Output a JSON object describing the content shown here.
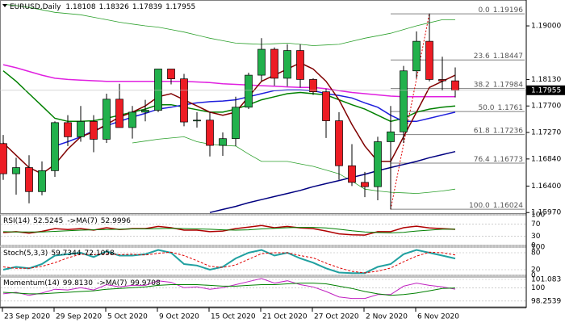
{
  "chart_data": {
    "type": "candlestick",
    "title": "EURUSD,Daily",
    "x": [
      "23 Sep 2020",
      null,
      null,
      null,
      "29 Sep 2020",
      null,
      null,
      null,
      "5 Oct 2020",
      null,
      null,
      null,
      "9 Oct 2020",
      null,
      null,
      null,
      "15 Oct 2020",
      null,
      null,
      null,
      "21 Oct 2020",
      null,
      null,
      null,
      "27 Oct 2020",
      null,
      null,
      null,
      "2 Nov 2020",
      null,
      null,
      null,
      "6 Nov 2020",
      null,
      null,
      null
    ],
    "open": [
      1.1709,
      1.166,
      1.167,
      1.1631,
      1.1665,
      1.1743,
      1.172,
      1.1745,
      1.1716,
      1.1781,
      1.1735,
      1.176,
      1.1763,
      1.183,
      1.1814,
      1.1746,
      1.1747,
      1.1706,
      1.1717,
      1.1768,
      1.182,
      1.1862,
      1.1815,
      1.186,
      1.1813,
      1.1793,
      1.1746,
      1.1673,
      1.1646,
      1.1639,
      1.1712,
      1.1728,
      1.1827,
      1.1875,
      1.1813,
      1.18108
    ],
    "high": [
      1.1723,
      1.1686,
      1.169,
      1.168,
      1.1745,
      1.1755,
      1.177,
      1.1755,
      1.179,
      1.1806,
      1.177,
      1.178,
      1.183,
      1.183,
      1.1822,
      1.176,
      1.176,
      1.1727,
      1.1785,
      1.1824,
      1.188,
      1.1865,
      1.187,
      1.187,
      1.1815,
      1.1798,
      1.176,
      1.1708,
      1.1663,
      1.172,
      1.177,
      1.1835,
      1.1891,
      1.192,
      1.185,
      1.18326
    ],
    "low": [
      1.165,
      1.1626,
      1.1612,
      1.1625,
      1.1655,
      1.1705,
      1.1712,
      1.1695,
      1.171,
      1.1735,
      1.1717,
      1.1745,
      1.176,
      1.1805,
      1.1737,
      1.1735,
      1.1688,
      1.1689,
      1.1705,
      1.1765,
      1.181,
      1.1803,
      1.1802,
      1.18,
      1.1788,
      1.1718,
      1.165,
      1.164,
      1.1622,
      1.1617,
      1.1602,
      1.171,
      1.1815,
      1.181,
      1.1795,
      1.17839
    ],
    "close": [
      1.166,
      1.167,
      1.1631,
      1.1665,
      1.1743,
      1.172,
      1.1745,
      1.1716,
      1.1781,
      1.1735,
      1.176,
      1.1763,
      1.183,
      1.1814,
      1.1744,
      1.1747,
      1.1706,
      1.1717,
      1.1768,
      1.182,
      1.1862,
      1.1815,
      1.186,
      1.1813,
      1.1793,
      1.1746,
      1.1673,
      1.1646,
      1.1639,
      1.1712,
      1.1728,
      1.1827,
      1.1875,
      1.1813,
      1.18108,
      1.17955
    ],
    "up_color": "#22b14c",
    "down_color": "#ed1c24",
    "ylim": [
      1.1596,
      1.1942
    ],
    "yticks": [
      {
        "value": 1.19,
        "label": "1.19000"
      },
      {
        "value": 1.1813,
        "label": "1.18130"
      },
      {
        "value": 1.177,
        "label": "1.17700"
      },
      {
        "value": 1.1727,
        "label": "1.17270"
      },
      {
        "value": 1.1684,
        "label": "1.16840"
      },
      {
        "value": 1.164,
        "label": "1.16400"
      },
      {
        "value": 1.1597,
        "label": "1.15970"
      }
    ],
    "series": [
      {
        "color": "#2ca02c",
        "values": [
          1.1935,
          1.1933,
          1.193,
          1.1926,
          1.1922,
          1.192,
          1.1918,
          1.1914,
          1.191,
          1.1906,
          1.1903,
          1.19,
          1.1898,
          1.1894,
          1.189,
          1.1885,
          1.188,
          1.1876,
          1.1872,
          1.1871,
          1.187,
          1.1871,
          1.1872,
          1.187,
          1.1868,
          1.1869,
          1.187,
          1.1875,
          1.188,
          1.1884,
          1.1888,
          1.1894,
          1.19,
          1.1905,
          1.191,
          1.191
        ]
      },
      {
        "color": "#2ca02c",
        "values": [
          null,
          null,
          null,
          null,
          null,
          null,
          null,
          null,
          null,
          null,
          1.171,
          1.1713,
          1.1716,
          1.1718,
          1.172,
          1.1712,
          1.1708,
          1.1706,
          1.1705,
          1.1692,
          1.168,
          1.168,
          1.168,
          1.1676,
          1.1672,
          1.1666,
          1.166,
          1.1648,
          1.1635,
          1.1632,
          1.163,
          1.1629,
          1.1628,
          1.163,
          1.1632,
          1.1635
        ]
      },
      {
        "color": "#e020e0",
        "values": [
          1.1837,
          1.1832,
          1.1826,
          1.182,
          1.1815,
          1.1813,
          1.1812,
          1.1811,
          1.181,
          1.181,
          1.181,
          1.181,
          1.181,
          1.181,
          1.181,
          1.1809,
          1.1808,
          1.1806,
          1.1805,
          1.1804,
          1.1803,
          1.1802,
          1.1801,
          1.18,
          1.18,
          1.1798,
          1.1795,
          1.1792,
          1.179,
          1.1788,
          1.1786,
          1.1785,
          1.1785,
          1.1785,
          1.1785,
          1.1785
        ]
      },
      {
        "color": "#008000",
        "values": [
          1.1827,
          1.181,
          1.179,
          1.177,
          1.175,
          1.1745,
          1.1745,
          1.1746,
          1.175,
          1.1755,
          1.176,
          1.1765,
          1.1772,
          1.1772,
          1.1768,
          1.1764,
          1.176,
          1.176,
          1.1765,
          1.1772,
          1.178,
          1.1785,
          1.179,
          1.1792,
          1.179,
          1.1788,
          1.178,
          1.1772,
          1.1765,
          1.1755,
          1.1745,
          1.175,
          1.176,
          1.1765,
          1.1768,
          1.177
        ]
      },
      {
        "color": "#1e1edc",
        "values": [
          null,
          null,
          null,
          null,
          1.1705,
          1.1712,
          1.172,
          1.173,
          1.1738,
          1.1745,
          1.1752,
          1.1758,
          1.1765,
          1.1768,
          1.1772,
          1.1775,
          1.1777,
          1.1778,
          1.178,
          1.1785,
          1.179,
          1.1795,
          1.1796,
          1.1796,
          1.1795,
          1.179,
          1.1787,
          1.1783,
          1.1775,
          1.1768,
          1.1755,
          1.1745,
          1.1745,
          1.175,
          1.1755,
          1.176
        ]
      },
      {
        "color": "#000080",
        "values": [
          null,
          null,
          null,
          null,
          null,
          null,
          null,
          null,
          null,
          null,
          null,
          null,
          null,
          null,
          null,
          null,
          1.1597,
          1.1602,
          1.1607,
          1.1613,
          1.1618,
          1.1623,
          1.1628,
          1.1633,
          1.1639,
          1.1644,
          1.1649,
          1.1654,
          1.1659,
          1.1665,
          1.167,
          1.1675,
          1.168,
          1.1686,
          1.1691,
          1.1696
        ]
      },
      {
        "color": "#800000",
        "values": [
          1.171,
          1.169,
          1.167,
          1.166,
          1.1675,
          1.17,
          1.172,
          1.1728,
          1.174,
          1.1752,
          1.176,
          1.177,
          1.1785,
          1.179,
          1.178,
          1.177,
          1.176,
          1.1755,
          1.176,
          1.1785,
          1.181,
          1.182,
          1.183,
          1.184,
          1.183,
          1.181,
          1.178,
          1.174,
          1.1705,
          1.168,
          1.168,
          1.172,
          1.176,
          1.18,
          1.181,
          1.182
        ]
      }
    ],
    "fib_levels": [
      {
        "ratio": "0.0",
        "price": 1.19196
      },
      {
        "ratio": "23.6",
        "price": 1.18447
      },
      {
        "ratio": "38.2",
        "price": 1.17984
      },
      {
        "ratio": "50.0",
        "price": 1.1761
      },
      {
        "ratio": "61.8",
        "price": 1.17236
      },
      {
        "ratio": "76.4",
        "price": 1.16773
      },
      {
        "ratio": "100.0",
        "price": 1.16024
      }
    ],
    "fib_color": "#808080",
    "indicators": [
      {
        "ylim": [
          0,
          100
        ],
        "yticks": [
          100,
          70,
          30,
          0
        ],
        "series": [
          {
            "name": "RSI(14)",
            "color": "#b00000",
            "width": 1.5,
            "values": [
              42,
              45,
              40,
              46,
              55,
              52,
              55,
              50,
              58,
              52,
              55,
              55,
              62,
              58,
              50,
              50,
              45,
              47,
              55,
              60,
              65,
              58,
              62,
              57,
              55,
              47,
              38,
              35,
              34,
              45,
              45,
              58,
              63,
              57,
              55,
              52.5245
            ]
          },
          {
            "name": "->MA(7)",
            "color": "#008000",
            "width": 1,
            "values": [
              45,
              44,
              44,
              44,
              46,
              48,
              50,
              51,
              52,
              53,
              54,
              54,
              55,
              56,
              55,
              54,
              53,
              51,
              50,
              51,
              54,
              56,
              58,
              59,
              59,
              57,
              53,
              48,
              44,
              42,
              41,
              43,
              47,
              50,
              53,
              52.9996
            ]
          }
        ]
      },
      {
        "ylim": [
          0,
          100
        ],
        "yticks": [
          100,
          80,
          20,
          0
        ],
        "series": [
          {
            "name": "Stoch(5,3,3)",
            "color": "#20a0a0",
            "width": 2,
            "values": [
              20,
              30,
              25,
              40,
              70,
              75,
              80,
              65,
              85,
              70,
              70,
              75,
              90,
              80,
              40,
              35,
              20,
              30,
              60,
              80,
              90,
              70,
              80,
              60,
              45,
              25,
              10,
              8,
              8,
              30,
              40,
              75,
              90,
              80,
              70,
              59.7344
            ]
          },
          {
            "color": "#e00000",
            "width": 1,
            "dashed": true,
            "values": [
              30,
              25,
              25,
              32,
              45,
              62,
              75,
              73,
              77,
              73,
              75,
              72,
              78,
              82,
              70,
              52,
              32,
              28,
              37,
              57,
              77,
              80,
              80,
              70,
              62,
              43,
              27,
              14,
              9,
              15,
              26,
              48,
              68,
              82,
              80,
              72.1058
            ]
          }
        ]
      },
      {
        "ylim": [
          97.5,
          101.4
        ],
        "yticks": [
          101.083,
          100,
          98.2539
        ],
        "series": [
          {
            "name": "Momentum(14)",
            "color": "#c020c0",
            "width": 1,
            "values": [
              99.2,
              99.4,
              99,
              99.3,
              99.8,
              99.7,
              100,
              99.7,
              100.4,
              100.1,
              100.3,
              100.3,
              100.9,
              100.7,
              100,
              100.1,
              99.8,
              100,
              100.4,
              100.8,
              101.2,
              100.6,
              100.9,
              100.4,
              100.1,
              99.5,
              98.8,
              98.6,
              98.6,
              99.1,
              99.1,
              100.2,
              100.6,
              100.3,
              100.1,
              99.813
            ],
            "value_label": "99.8130"
          },
          {
            "name": "->MA(7)",
            "color": "#008000",
            "width": 1,
            "values": [
              99.4,
              99.3,
              99.2,
              99.2,
              99.3,
              99.4,
              99.5,
              99.6,
              99.8,
              99.9,
              100,
              100.1,
              100.3,
              100.4,
              100.4,
              100.4,
              100.3,
              100.2,
              100.2,
              100.3,
              100.4,
              100.4,
              100.5,
              100.6,
              100.6,
              100.5,
              100.2,
              99.9,
              99.5,
              99.2,
              99,
              99.1,
              99.3,
              99.6,
              99.9,
              99.9708
            ]
          }
        ]
      }
    ]
  }
}
